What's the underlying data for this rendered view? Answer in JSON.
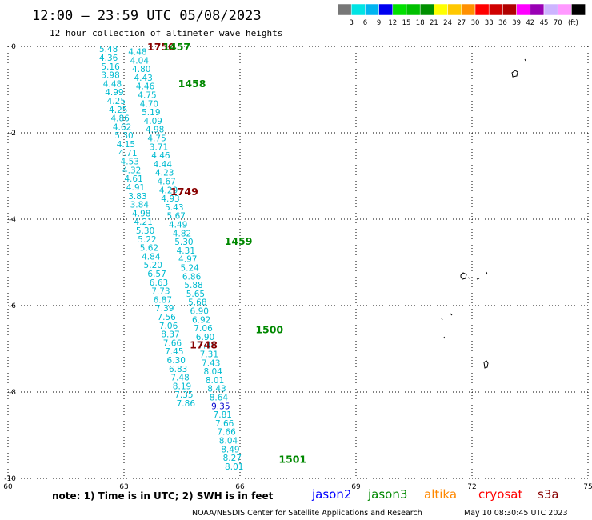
{
  "header": {
    "title": "12:00 – 23:59 UTC 05/08/2023",
    "subtitle": "12 hour collection of altimeter wave heights"
  },
  "colorbar": {
    "colors": [
      "#777777",
      "#00e4e4",
      "#00b4f0",
      "#0000f0",
      "#00e000",
      "#00c000",
      "#009000",
      "#ffff00",
      "#ffc800",
      "#ff9000",
      "#ff0000",
      "#d00000",
      "#b00000",
      "#ff00ff",
      "#9900b4",
      "#cdb4ff",
      "#ff99ff",
      "#000000"
    ],
    "labels": [
      "3",
      "6",
      "9",
      "12",
      "15",
      "18",
      "21",
      "24",
      "27",
      "30",
      "33",
      "36",
      "39",
      "42",
      "45",
      "70"
    ],
    "unit": "(ft)"
  },
  "footer": {
    "note": "note:  1) Time is in UTC; 2) SWH is in feet",
    "satellites": [
      {
        "name": "jason2",
        "color": "#0000ff"
      },
      {
        "name": "jason3",
        "color": "#008800"
      },
      {
        "name": "altika",
        "color": "#ff8800"
      },
      {
        "name": "cryosat",
        "color": "#ff0000"
      },
      {
        "name": "s3a",
        "color": "#880000"
      }
    ],
    "credit": "NOAA/NESDIS Center for Satellite Applications and Research",
    "timestamp": "May 10 08:30:45 UTC 2023"
  },
  "chart_data": {
    "type": "scatter",
    "title": "12:00 – 23:59 UTC 05/08/2023",
    "xlim": [
      60,
      75
    ],
    "ylim": [
      -10,
      0
    ],
    "x_ticks": [
      "60",
      "63",
      "66",
      "69",
      "72",
      "75"
    ],
    "y_ticks": [
      "0",
      "-2",
      "-4",
      "-6",
      "-8",
      "-10"
    ],
    "grid": true,
    "series": [
      {
        "color": "#00bbd0",
        "points": [
          {
            "x": 62.6,
            "y": -0.06,
            "v": "5.48"
          },
          {
            "x": 62.6,
            "y": -0.26,
            "v": "4.36"
          },
          {
            "x": 62.65,
            "y": -0.46,
            "v": "5.16"
          },
          {
            "x": 62.65,
            "y": -0.66,
            "v": "3.98"
          },
          {
            "x": 62.7,
            "y": -0.86,
            "v": "4.48"
          },
          {
            "x": 62.75,
            "y": -1.06,
            "v": "4.99"
          },
          {
            "x": 62.8,
            "y": -1.26,
            "v": "4.25"
          },
          {
            "x": 62.85,
            "y": -1.46,
            "v": "4.25"
          },
          {
            "x": 62.9,
            "y": -1.66,
            "v": "4.86"
          },
          {
            "x": 62.95,
            "y": -1.86,
            "v": "4.62"
          },
          {
            "x": 63.0,
            "y": -2.06,
            "v": "5.30"
          },
          {
            "x": 63.05,
            "y": -2.26,
            "v": "4.15"
          },
          {
            "x": 63.1,
            "y": -2.46,
            "v": "4.71"
          },
          {
            "x": 63.15,
            "y": -2.66,
            "v": "4.53"
          },
          {
            "x": 63.2,
            "y": -2.86,
            "v": "4.32"
          },
          {
            "x": 63.25,
            "y": -3.06,
            "v": "4.61"
          },
          {
            "x": 63.3,
            "y": -3.26,
            "v": "4.91"
          },
          {
            "x": 63.35,
            "y": -3.46,
            "v": "3.83"
          },
          {
            "x": 63.4,
            "y": -3.66,
            "v": "3.84"
          },
          {
            "x": 63.45,
            "y": -3.86,
            "v": "4.98"
          },
          {
            "x": 63.5,
            "y": -4.06,
            "v": "4.21"
          },
          {
            "x": 63.55,
            "y": -4.26,
            "v": "5.30"
          },
          {
            "x": 63.6,
            "y": -4.46,
            "v": "5.22"
          },
          {
            "x": 63.65,
            "y": -4.66,
            "v": "5.62"
          },
          {
            "x": 63.7,
            "y": -4.86,
            "v": "4.84"
          },
          {
            "x": 63.75,
            "y": -5.06,
            "v": "5.20"
          },
          {
            "x": 63.85,
            "y": -5.26,
            "v": "6.57"
          },
          {
            "x": 63.9,
            "y": -5.46,
            "v": "6.63"
          },
          {
            "x": 63.95,
            "y": -5.66,
            "v": "7.73"
          },
          {
            "x": 64.0,
            "y": -5.86,
            "v": "6.87"
          },
          {
            "x": 64.05,
            "y": -6.06,
            "v": "7.39"
          },
          {
            "x": 64.1,
            "y": -6.26,
            "v": "7.56"
          },
          {
            "x": 64.15,
            "y": -6.46,
            "v": "7.06"
          },
          {
            "x": 64.2,
            "y": -6.66,
            "v": "8.37"
          },
          {
            "x": 64.25,
            "y": -6.86,
            "v": "7.66"
          },
          {
            "x": 64.3,
            "y": -7.06,
            "v": "7.45"
          },
          {
            "x": 64.35,
            "y": -7.26,
            "v": "6.30"
          },
          {
            "x": 64.4,
            "y": -7.46,
            "v": "6.83"
          },
          {
            "x": 64.45,
            "y": -7.66,
            "v": "7.48"
          },
          {
            "x": 64.5,
            "y": -7.86,
            "v": "8.19"
          },
          {
            "x": 64.55,
            "y": -8.06,
            "v": "7.35"
          },
          {
            "x": 64.6,
            "y": -8.26,
            "v": "7.86"
          }
        ]
      },
      {
        "color": "#00bbd0",
        "points": [
          {
            "x": 63.35,
            "y": -0.12,
            "v": "4.48"
          },
          {
            "x": 63.4,
            "y": -0.32,
            "v": "4.04"
          },
          {
            "x": 63.45,
            "y": -0.52,
            "v": "4.80"
          },
          {
            "x": 63.5,
            "y": -0.72,
            "v": "4.43"
          },
          {
            "x": 63.55,
            "y": -0.92,
            "v": "4.46"
          },
          {
            "x": 63.6,
            "y": -1.12,
            "v": "4.75"
          },
          {
            "x": 63.65,
            "y": -1.32,
            "v": "4.70"
          },
          {
            "x": 63.7,
            "y": -1.52,
            "v": "5.19"
          },
          {
            "x": 63.75,
            "y": -1.72,
            "v": "4.09"
          },
          {
            "x": 63.8,
            "y": -1.92,
            "v": "4.98"
          },
          {
            "x": 63.85,
            "y": -2.12,
            "v": "4.75"
          },
          {
            "x": 63.9,
            "y": -2.32,
            "v": "3.71"
          },
          {
            "x": 63.95,
            "y": -2.52,
            "v": "4.46"
          },
          {
            "x": 64.0,
            "y": -2.72,
            "v": "4.44"
          },
          {
            "x": 64.05,
            "y": -2.92,
            "v": "4.23"
          },
          {
            "x": 64.1,
            "y": -3.12,
            "v": "4.67"
          },
          {
            "x": 64.15,
            "y": -3.32,
            "v": "4.29"
          },
          {
            "x": 64.2,
            "y": -3.52,
            "v": "4.93"
          },
          {
            "x": 64.3,
            "y": -3.72,
            "v": "5.43"
          },
          {
            "x": 64.35,
            "y": -3.92,
            "v": "5.67"
          },
          {
            "x": 64.4,
            "y": -4.12,
            "v": "4.49"
          },
          {
            "x": 64.5,
            "y": -4.32,
            "v": "4.82"
          },
          {
            "x": 64.55,
            "y": -4.52,
            "v": "5.30"
          },
          {
            "x": 64.6,
            "y": -4.72,
            "v": "4.31"
          },
          {
            "x": 64.65,
            "y": -4.92,
            "v": "4.97"
          },
          {
            "x": 64.7,
            "y": -5.12,
            "v": "5.24"
          },
          {
            "x": 64.75,
            "y": -5.32,
            "v": "6.86"
          },
          {
            "x": 64.8,
            "y": -5.52,
            "v": "5.88"
          },
          {
            "x": 64.85,
            "y": -5.72,
            "v": "5.65"
          },
          {
            "x": 64.9,
            "y": -5.92,
            "v": "5.68"
          },
          {
            "x": 64.95,
            "y": -6.12,
            "v": "6.90"
          },
          {
            "x": 65.0,
            "y": -6.32,
            "v": "6.92"
          },
          {
            "x": 65.05,
            "y": -6.52,
            "v": "7.06"
          },
          {
            "x": 65.1,
            "y": -6.72,
            "v": "6.90"
          },
          {
            "x": 65.15,
            "y": -6.92,
            "v": "7.46"
          },
          {
            "x": 65.2,
            "y": -7.12,
            "v": "7.31"
          },
          {
            "x": 65.25,
            "y": -7.32,
            "v": "7.43"
          },
          {
            "x": 65.3,
            "y": -7.52,
            "v": "8.04"
          },
          {
            "x": 65.35,
            "y": -7.72,
            "v": "8.01"
          },
          {
            "x": 65.4,
            "y": -7.92,
            "v": "8.43"
          },
          {
            "x": 65.45,
            "y": -8.12,
            "v": "8.64"
          },
          {
            "x": 65.5,
            "y": -8.32,
            "v": "9.35"
          },
          {
            "x": 65.55,
            "y": -8.52,
            "v": "7.81"
          },
          {
            "x": 65.6,
            "y": -8.72,
            "v": "7.66"
          },
          {
            "x": 65.65,
            "y": -8.92,
            "v": "7.66"
          },
          {
            "x": 65.7,
            "y": -9.12,
            "v": "8.04"
          },
          {
            "x": 65.75,
            "y": -9.32,
            "v": "8.49"
          },
          {
            "x": 65.8,
            "y": -9.52,
            "v": "8.27"
          },
          {
            "x": 65.85,
            "y": -9.72,
            "v": "8.01"
          }
        ]
      }
    ],
    "pass_labels": [
      {
        "text": "1750",
        "x": 63.6,
        "y": 0.0,
        "color": "#880000"
      },
      {
        "text": "1457",
        "x": 64.0,
        "y": 0.0,
        "color": "#008800"
      },
      {
        "text": "1458",
        "x": 64.4,
        "y": -0.85,
        "color": "#008800"
      },
      {
        "text": "1749",
        "x": 64.2,
        "y": -3.35,
        "color": "#880000"
      },
      {
        "text": "1459",
        "x": 65.6,
        "y": -4.5,
        "color": "#008800"
      },
      {
        "text": "1500",
        "x": 66.4,
        "y": -6.55,
        "color": "#008800"
      },
      {
        "text": "1748",
        "x": 64.7,
        "y": -6.9,
        "color": "#880000"
      },
      {
        "text": "1501",
        "x": 67.0,
        "y": -9.55,
        "color": "#008800"
      }
    ]
  }
}
